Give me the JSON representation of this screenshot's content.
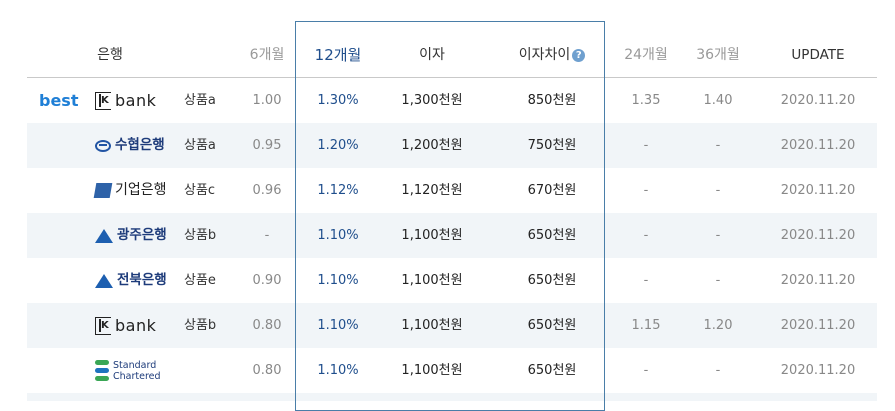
{
  "header": {
    "bank": "은행",
    "m6": "6개월",
    "m12": "12개월",
    "interest": "이자",
    "diff": "이자차이",
    "diff_help_icon": "question-circle-icon",
    "m24": "24개월",
    "m36": "36개월",
    "update": "UPDATE"
  },
  "best_label": "best",
  "rows": [
    {
      "logo": "K bank",
      "logo_k": "K",
      "logo_rest": "bank",
      "product": "상품a",
      "m6": "1.00",
      "m12": "1.30%",
      "interest": "1,300천원",
      "diff": "850천원",
      "m24": "1.35",
      "m36": "1.40",
      "update": "2020.11.20"
    },
    {
      "logo": "수협은행",
      "product": "상품a",
      "m6": "0.95",
      "m12": "1.20%",
      "interest": "1,200천원",
      "diff": "750천원",
      "m24": "-",
      "m36": "-",
      "update": "2020.11.20"
    },
    {
      "logo": "기업은행",
      "product": "상품c",
      "m6": "0.96",
      "m12": "1.12%",
      "interest": "1,120천원",
      "diff": "670천원",
      "m24": "-",
      "m36": "-",
      "update": "2020.11.20"
    },
    {
      "logo": "광주은행",
      "product": "상품b",
      "m6": "-",
      "m12": "1.10%",
      "interest": "1,100천원",
      "diff": "650천원",
      "m24": "-",
      "m36": "-",
      "update": "2020.11.20"
    },
    {
      "logo": "전북은행",
      "product": "상품e",
      "m6": "0.90",
      "m12": "1.10%",
      "interest": "1,100천원",
      "diff": "650천원",
      "m24": "-",
      "m36": "-",
      "update": "2020.11.20"
    },
    {
      "logo": "K bank",
      "logo_k": "K",
      "logo_rest": "bank",
      "product": "상품b",
      "m6": "0.80",
      "m12": "1.10%",
      "interest": "1,100천원",
      "diff": "650천원",
      "m24": "1.15",
      "m36": "1.20",
      "update": "2020.11.20"
    },
    {
      "logo_line1": "Standard",
      "logo_line2": "Chartered",
      "product": "",
      "m6": "0.80",
      "m12": "1.10%",
      "interest": "1,100천원",
      "diff": "650천원",
      "m24": "-",
      "m36": "-",
      "update": "2020.11.20"
    }
  ],
  "colors": {
    "accent": "#1f4e8c",
    "best": "#1f7fd6",
    "stripe": "#f1f5f8",
    "highlight_border": "#4a7ea8"
  }
}
